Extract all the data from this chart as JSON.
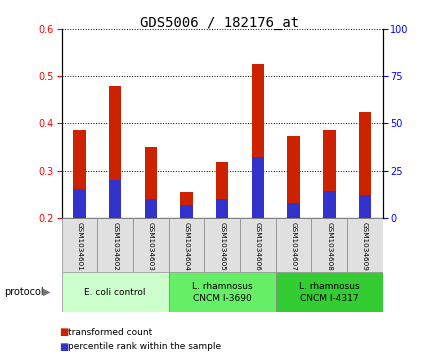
{
  "title": "GDS5006 / 182176_at",
  "samples": [
    "GSM1034601",
    "GSM1034602",
    "GSM1034603",
    "GSM1034604",
    "GSM1034605",
    "GSM1034606",
    "GSM1034607",
    "GSM1034608",
    "GSM1034609"
  ],
  "transformed_count": [
    0.385,
    0.48,
    0.35,
    0.255,
    0.318,
    0.525,
    0.374,
    0.387,
    0.425
  ],
  "base_value": 0.2,
  "percentile_rank_pct": [
    15,
    20,
    10,
    7,
    10,
    32,
    8,
    14,
    12
  ],
  "ylim_left": [
    0.2,
    0.6
  ],
  "ylim_right": [
    0,
    100
  ],
  "yticks_left": [
    0.2,
    0.3,
    0.4,
    0.5,
    0.6
  ],
  "yticks_right": [
    0,
    25,
    50,
    75,
    100
  ],
  "bar_color": "#cc2200",
  "percentile_color": "#3333cc",
  "proto_colors": [
    "#ccffcc",
    "#66ee66",
    "#33cc33"
  ],
  "proto_labels": [
    "E. coli control",
    "L. rhamnosus\nCNCM I-3690",
    "L. rhamnosus\nCNCM I-4317"
  ],
  "proto_ranges": [
    [
      0,
      3
    ],
    [
      3,
      6
    ],
    [
      6,
      9
    ]
  ],
  "legend_items": [
    {
      "label": "transformed count",
      "color": "#cc2200"
    },
    {
      "label": "percentile rank within the sample",
      "color": "#3333cc"
    }
  ],
  "bar_width": 0.35,
  "title_fontsize": 10,
  "tick_fontsize": 7,
  "label_fontsize": 6,
  "protocol_label": "protocol",
  "figsize": [
    4.4,
    3.63
  ],
  "dpi": 100
}
